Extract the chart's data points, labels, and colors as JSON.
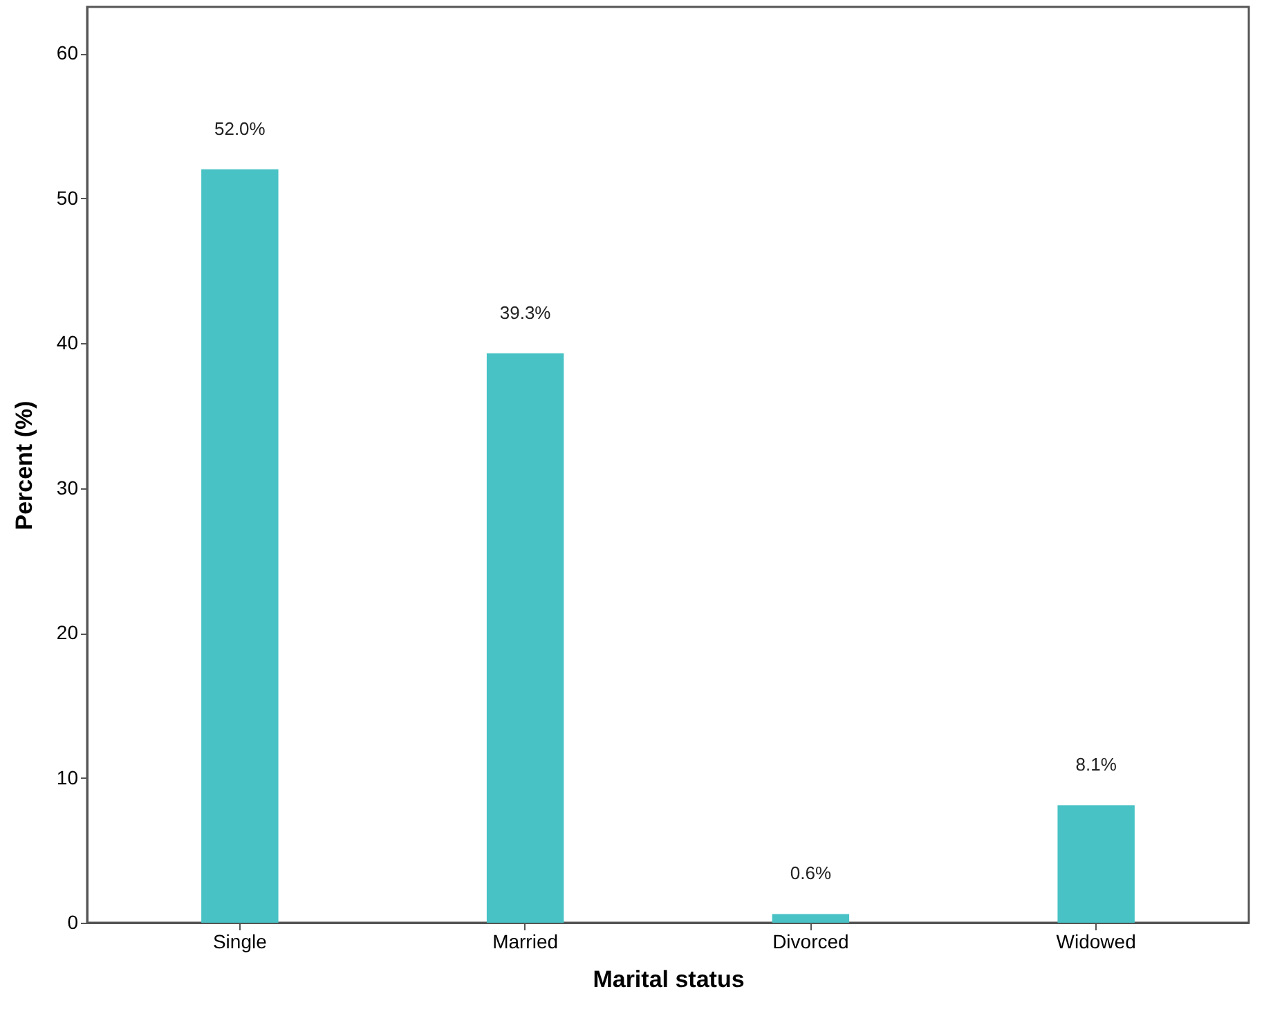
{
  "chart_data": {
    "type": "bar",
    "xlabel": "Marital status",
    "ylabel": "Percent (%)",
    "categories": [
      "Single",
      "Married",
      "Divorced",
      "Widowed"
    ],
    "values": [
      52.0,
      39.3,
      0.6,
      8.1
    ],
    "value_labels": [
      "52.0%",
      "39.3%",
      "0.6%",
      "8.1%"
    ],
    "color": "#48c2c5",
    "ylim": [
      0,
      63.2
    ],
    "yticks": [
      0,
      10,
      20,
      30,
      40,
      50,
      60
    ],
    "grid": false
  }
}
